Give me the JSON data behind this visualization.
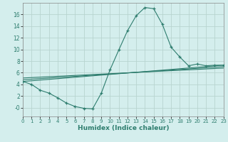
{
  "xlabel": "Humidex (Indice chaleur)",
  "bg_color": "#d4eeed",
  "grid_color": "#b8d4d0",
  "line_color": "#2e7d6e",
  "x_values": [
    0,
    1,
    2,
    3,
    4,
    5,
    6,
    7,
    8,
    9,
    10,
    11,
    12,
    13,
    14,
    15,
    16,
    17,
    18,
    19,
    20,
    21,
    22,
    23
  ],
  "series1": [
    4.5,
    4.0,
    3.0,
    2.5,
    1.7,
    0.8,
    0.2,
    -0.1,
    -0.2,
    2.5,
    6.5,
    9.9,
    13.2,
    15.8,
    17.2,
    17.0,
    14.3,
    10.4,
    8.7,
    7.2,
    7.5,
    7.2,
    7.3,
    7.3
  ],
  "series2": [
    [
      0,
      23
    ],
    [
      4.5,
      7.3
    ]
  ],
  "series3": [
    [
      0,
      23
    ],
    [
      4.8,
      7.05
    ]
  ],
  "series4": [
    [
      0,
      23
    ],
    [
      5.1,
      6.8
    ]
  ],
  "xlim": [
    0,
    23
  ],
  "ylim": [
    -1.5,
    18.0
  ],
  "yticks": [
    0,
    2,
    4,
    6,
    8,
    10,
    12,
    14,
    16
  ],
  "ytick_labels": [
    "-0",
    "2",
    "4",
    "6",
    "8",
    "10",
    "12",
    "14",
    "16"
  ]
}
